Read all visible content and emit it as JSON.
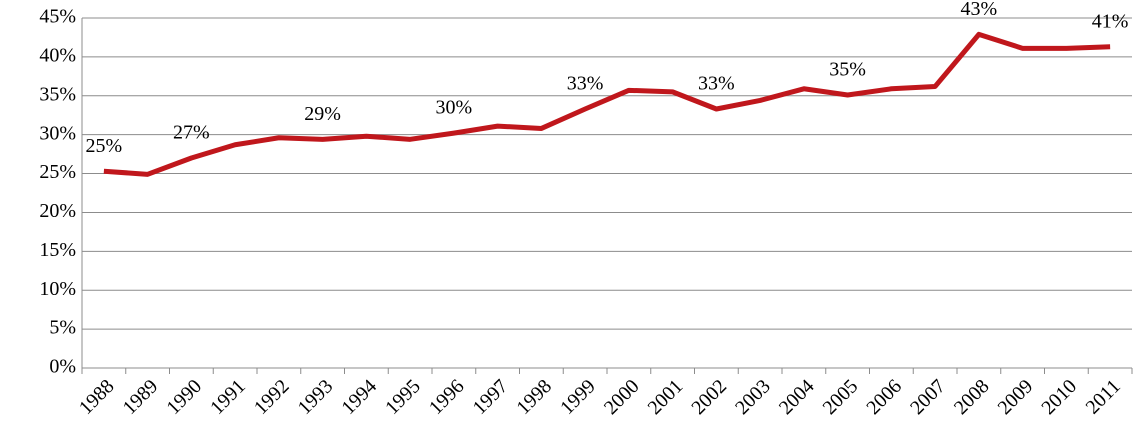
{
  "chart_data": {
    "type": "line",
    "categories": [
      "1988",
      "1989",
      "1990",
      "1991",
      "1992",
      "1993",
      "1994",
      "1995",
      "1996",
      "1997",
      "1998",
      "1999",
      "2000",
      "2001",
      "2002",
      "2003",
      "2004",
      "2005",
      "2006",
      "2007",
      "2008",
      "2009",
      "2010",
      "2011"
    ],
    "series": [
      {
        "color": "#c0171c",
        "values": [
          25.3,
          24.9,
          27.0,
          28.7,
          29.6,
          29.4,
          29.8,
          29.4,
          30.2,
          31.1,
          30.8,
          33.3,
          35.7,
          35.5,
          33.3,
          34.4,
          35.9,
          35.1,
          35.9,
          36.2,
          42.9,
          41.1,
          41.1,
          41.3
        ],
        "value_labels": [
          "25%",
          null,
          "27%",
          null,
          null,
          "29%",
          null,
          null,
          "30%",
          null,
          null,
          "33%",
          null,
          null,
          "33%",
          null,
          null,
          "35%",
          null,
          null,
          "43%",
          null,
          null,
          "41%"
        ]
      }
    ],
    "ylim": [
      0,
      45
    ],
    "yticks": [
      {
        "value": 0,
        "label": "0%"
      },
      {
        "value": 5,
        "label": "5%"
      },
      {
        "value": 10,
        "label": "10%"
      },
      {
        "value": 15,
        "label": "15%"
      },
      {
        "value": 20,
        "label": "20%"
      },
      {
        "value": 25,
        "label": "25%"
      },
      {
        "value": 30,
        "label": "30%"
      },
      {
        "value": 35,
        "label": "35%"
      },
      {
        "value": 40,
        "label": "40%"
      },
      {
        "value": 45,
        "label": "45%"
      }
    ],
    "grid": true
  }
}
